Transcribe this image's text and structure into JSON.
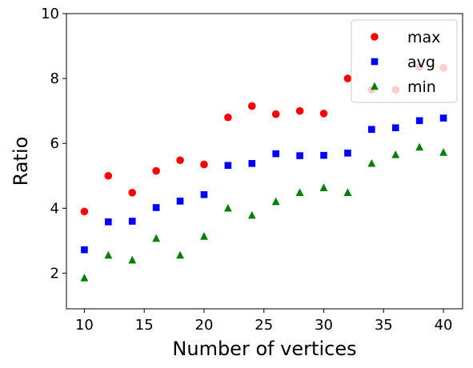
{
  "chart_data": {
    "type": "scatter",
    "xlabel": "Number of vertices",
    "ylabel": "Ratio",
    "xlim": [
      8.5,
      41.6
    ],
    "ylim": [
      0.9,
      10
    ],
    "xticks": [
      10,
      15,
      20,
      25,
      30,
      35,
      40
    ],
    "yticks": [
      2,
      4,
      6,
      8,
      10
    ],
    "grid": false,
    "legend_position": "top-right",
    "x": [
      10,
      12,
      14,
      16,
      18,
      20,
      22,
      24,
      26,
      28,
      30,
      32,
      34,
      36,
      38,
      40
    ],
    "series": [
      {
        "name": "max",
        "marker": "circle",
        "color": "#ff0000",
        "values": [
          3.9,
          5.0,
          4.48,
          5.15,
          5.48,
          5.35,
          6.8,
          7.15,
          6.9,
          7.0,
          6.92,
          8.0,
          7.65,
          7.65,
          8.35,
          8.33
        ]
      },
      {
        "name": "avg",
        "marker": "square",
        "color": "#0000ff",
        "values": [
          2.72,
          3.58,
          3.6,
          4.02,
          4.22,
          4.42,
          5.32,
          5.38,
          5.68,
          5.62,
          5.63,
          5.7,
          6.43,
          6.48,
          6.7,
          6.78
        ]
      },
      {
        "name": "min",
        "marker": "triangle",
        "color": "#008000",
        "values": [
          1.85,
          2.55,
          2.4,
          3.07,
          2.55,
          3.13,
          4.0,
          3.78,
          4.2,
          4.48,
          4.63,
          4.48,
          5.38,
          5.65,
          5.88,
          5.72
        ]
      }
    ]
  }
}
